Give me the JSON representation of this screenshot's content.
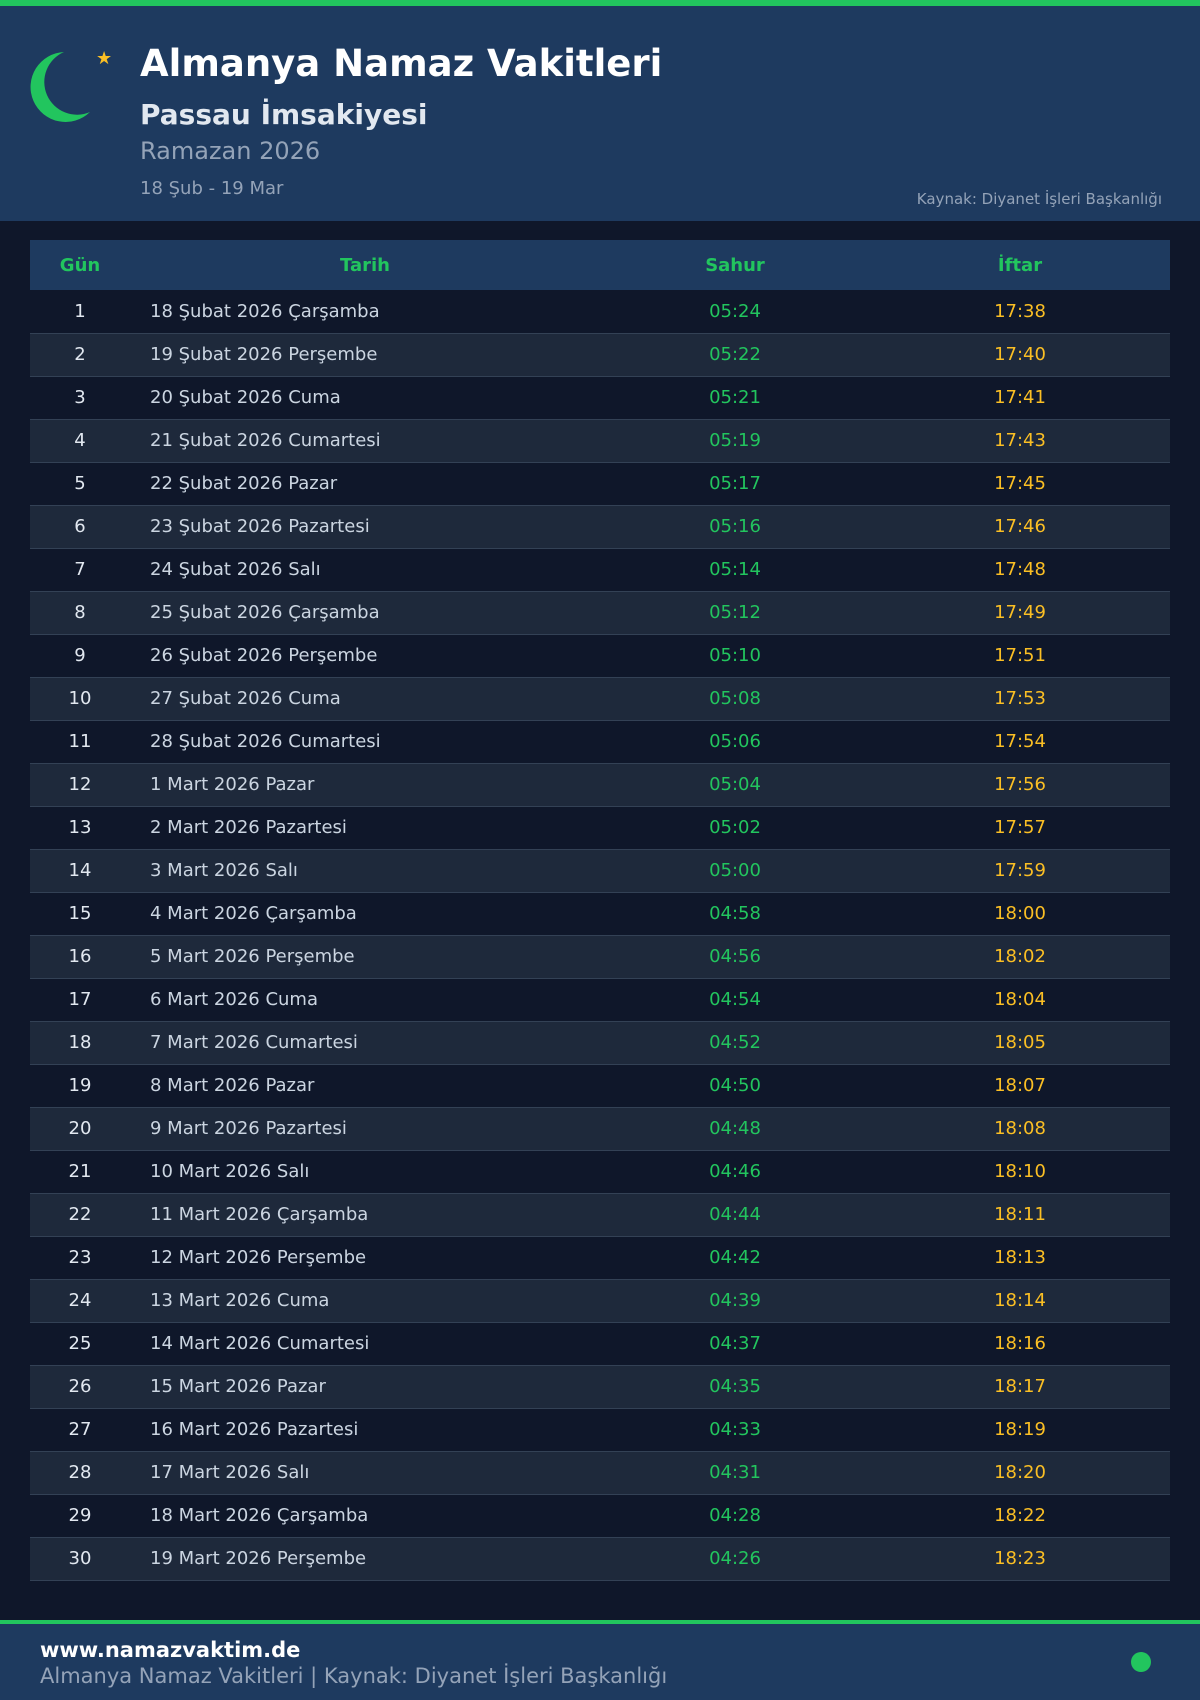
{
  "header": {
    "title": "Almanya Namaz Vakitleri",
    "subtitle": "Passau İmsakiyesi",
    "ramazan": "Ramazan 2026",
    "range": "18 Şub - 19 Mar",
    "source": "Kaynak: Diyanet İşleri Başkanlığı"
  },
  "colors": {
    "accent": "#22c55e",
    "iftar": "#fbbf24",
    "header_bg": "#1e3a5f",
    "page_bg": "#0f172a"
  },
  "icons": {
    "logo": "crescent-moon-star-icon",
    "status": "status-dot-icon"
  },
  "table": {
    "columns": [
      "Gün",
      "Tarih",
      "Sahur",
      "İftar"
    ],
    "rows": [
      [
        "1",
        "18 Şubat 2026 Çarşamba",
        "05:24",
        "17:38"
      ],
      [
        "2",
        "19 Şubat 2026 Perşembe",
        "05:22",
        "17:40"
      ],
      [
        "3",
        "20 Şubat 2026 Cuma",
        "05:21",
        "17:41"
      ],
      [
        "4",
        "21 Şubat 2026 Cumartesi",
        "05:19",
        "17:43"
      ],
      [
        "5",
        "22 Şubat 2026 Pazar",
        "05:17",
        "17:45"
      ],
      [
        "6",
        "23 Şubat 2026 Pazartesi",
        "05:16",
        "17:46"
      ],
      [
        "7",
        "24 Şubat 2026 Salı",
        "05:14",
        "17:48"
      ],
      [
        "8",
        "25 Şubat 2026 Çarşamba",
        "05:12",
        "17:49"
      ],
      [
        "9",
        "26 Şubat 2026 Perşembe",
        "05:10",
        "17:51"
      ],
      [
        "10",
        "27 Şubat 2026 Cuma",
        "05:08",
        "17:53"
      ],
      [
        "11",
        "28 Şubat 2026 Cumartesi",
        "05:06",
        "17:54"
      ],
      [
        "12",
        "1 Mart 2026 Pazar",
        "05:04",
        "17:56"
      ],
      [
        "13",
        "2 Mart 2026 Pazartesi",
        "05:02",
        "17:57"
      ],
      [
        "14",
        "3 Mart 2026 Salı",
        "05:00",
        "17:59"
      ],
      [
        "15",
        "4 Mart 2026 Çarşamba",
        "04:58",
        "18:00"
      ],
      [
        "16",
        "5 Mart 2026 Perşembe",
        "04:56",
        "18:02"
      ],
      [
        "17",
        "6 Mart 2026 Cuma",
        "04:54",
        "18:04"
      ],
      [
        "18",
        "7 Mart 2026 Cumartesi",
        "04:52",
        "18:05"
      ],
      [
        "19",
        "8 Mart 2026 Pazar",
        "04:50",
        "18:07"
      ],
      [
        "20",
        "9 Mart 2026 Pazartesi",
        "04:48",
        "18:08"
      ],
      [
        "21",
        "10 Mart 2026 Salı",
        "04:46",
        "18:10"
      ],
      [
        "22",
        "11 Mart 2026 Çarşamba",
        "04:44",
        "18:11"
      ],
      [
        "23",
        "12 Mart 2026 Perşembe",
        "04:42",
        "18:13"
      ],
      [
        "24",
        "13 Mart 2026 Cuma",
        "04:39",
        "18:14"
      ],
      [
        "25",
        "14 Mart 2026 Cumartesi",
        "04:37",
        "18:16"
      ],
      [
        "26",
        "15 Mart 2026 Pazar",
        "04:35",
        "18:17"
      ],
      [
        "27",
        "16 Mart 2026 Pazartesi",
        "04:33",
        "18:19"
      ],
      [
        "28",
        "17 Mart 2026 Salı",
        "04:31",
        "18:20"
      ],
      [
        "29",
        "18 Mart 2026 Çarşamba",
        "04:28",
        "18:22"
      ],
      [
        "30",
        "19 Mart 2026 Perşembe",
        "04:26",
        "18:23"
      ]
    ]
  },
  "footer": {
    "site": "www.namazvaktim.de",
    "text": "Almanya Namaz Vakitleri | Kaynak: Diyanet İşleri Başkanlığı"
  }
}
